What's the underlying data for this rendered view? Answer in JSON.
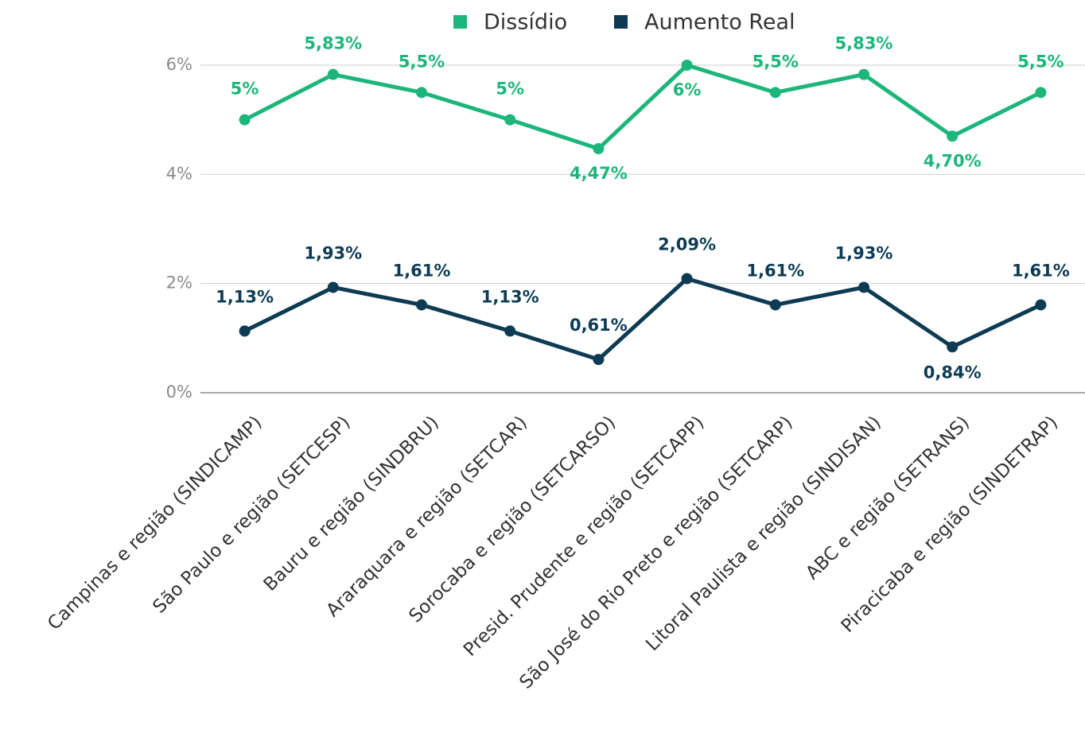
{
  "chart_data": {
    "type": "line",
    "categories": [
      "Campinas e região (SINDICAMP)",
      "São Paulo e região (SETCESP)",
      "Bauru e região (SINDBRU)",
      "Araraquara e região (SETCAR)",
      "Sorocaba e região (SETCARSO)",
      "Presid. Prudente e região (SETCAPP)",
      "São José do Rio Preto e região (SETCARP)",
      "Litoral Paulista e região (SINDISAN)",
      "ABC e região (SETRANS)",
      "Piracicaba e região (SINDETRAP)"
    ],
    "series": [
      {
        "name": "Dissídio",
        "color": "#1db67a",
        "values": [
          5,
          5.83,
          5.5,
          5,
          4.47,
          6,
          5.5,
          5.83,
          4.7,
          5.5
        ],
        "value_labels": [
          "5%",
          "5,83%",
          "5,5%",
          "5%",
          "4,47%",
          "6%",
          "5,5%",
          "5,83%",
          "4,70%",
          "5,5%"
        ]
      },
      {
        "name": "Aumento Real",
        "color": "#0d3b54",
        "values": [
          1.13,
          1.93,
          1.61,
          1.13,
          0.61,
          2.09,
          1.61,
          1.93,
          0.84,
          1.61
        ],
        "value_labels": [
          "1,13%",
          "1,93%",
          "1,61%",
          "1,13%",
          "0,61%",
          "2,09%",
          "1,61%",
          "1,93%",
          "0,84%",
          "1,61%"
        ]
      }
    ],
    "ylim": [
      0,
      6
    ],
    "yticks": [
      {
        "value": 0,
        "label": "0%"
      },
      {
        "value": 2,
        "label": "2%"
      },
      {
        "value": 4,
        "label": "4%"
      },
      {
        "value": 6,
        "label": "6%"
      }
    ],
    "grid": true,
    "legend": "top"
  }
}
